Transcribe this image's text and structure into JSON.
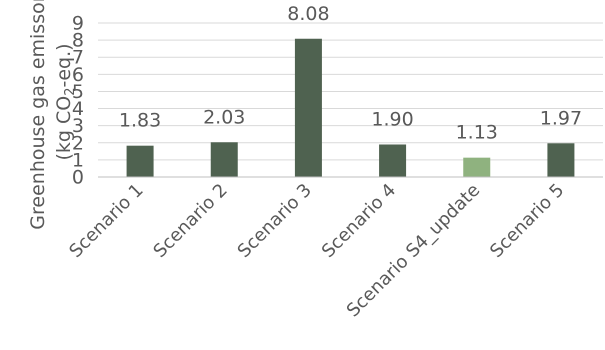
{
  "chart_data": {
    "type": "bar",
    "categories": [
      "Scenario 1",
      "Scenario 2",
      "Scenario 3",
      "Scenario 4",
      "Scenario S4_update",
      "Scenario 5"
    ],
    "values": [
      1.83,
      2.03,
      8.08,
      1.9,
      1.13,
      1.97
    ],
    "data_labels": [
      "1.83",
      "2.03",
      "8.08",
      "1.90",
      "1.13",
      "1.97"
    ],
    "bar_colors": [
      "#4f6250",
      "#4f6250",
      "#4f6250",
      "#4f6250",
      "#8fb27f",
      "#4f6250"
    ],
    "ylabel_line1": "Greenhouse gas emissons",
    "ylabel_line2_pre": "(kg CO",
    "ylabel_line2_sub": "2",
    "ylabel_line2_post": "-eq.)",
    "ylim": [
      0,
      9
    ],
    "yticks": [
      0,
      1,
      2,
      3,
      4,
      5,
      6,
      7,
      8,
      9
    ],
    "grid": true,
    "legend": "none"
  }
}
